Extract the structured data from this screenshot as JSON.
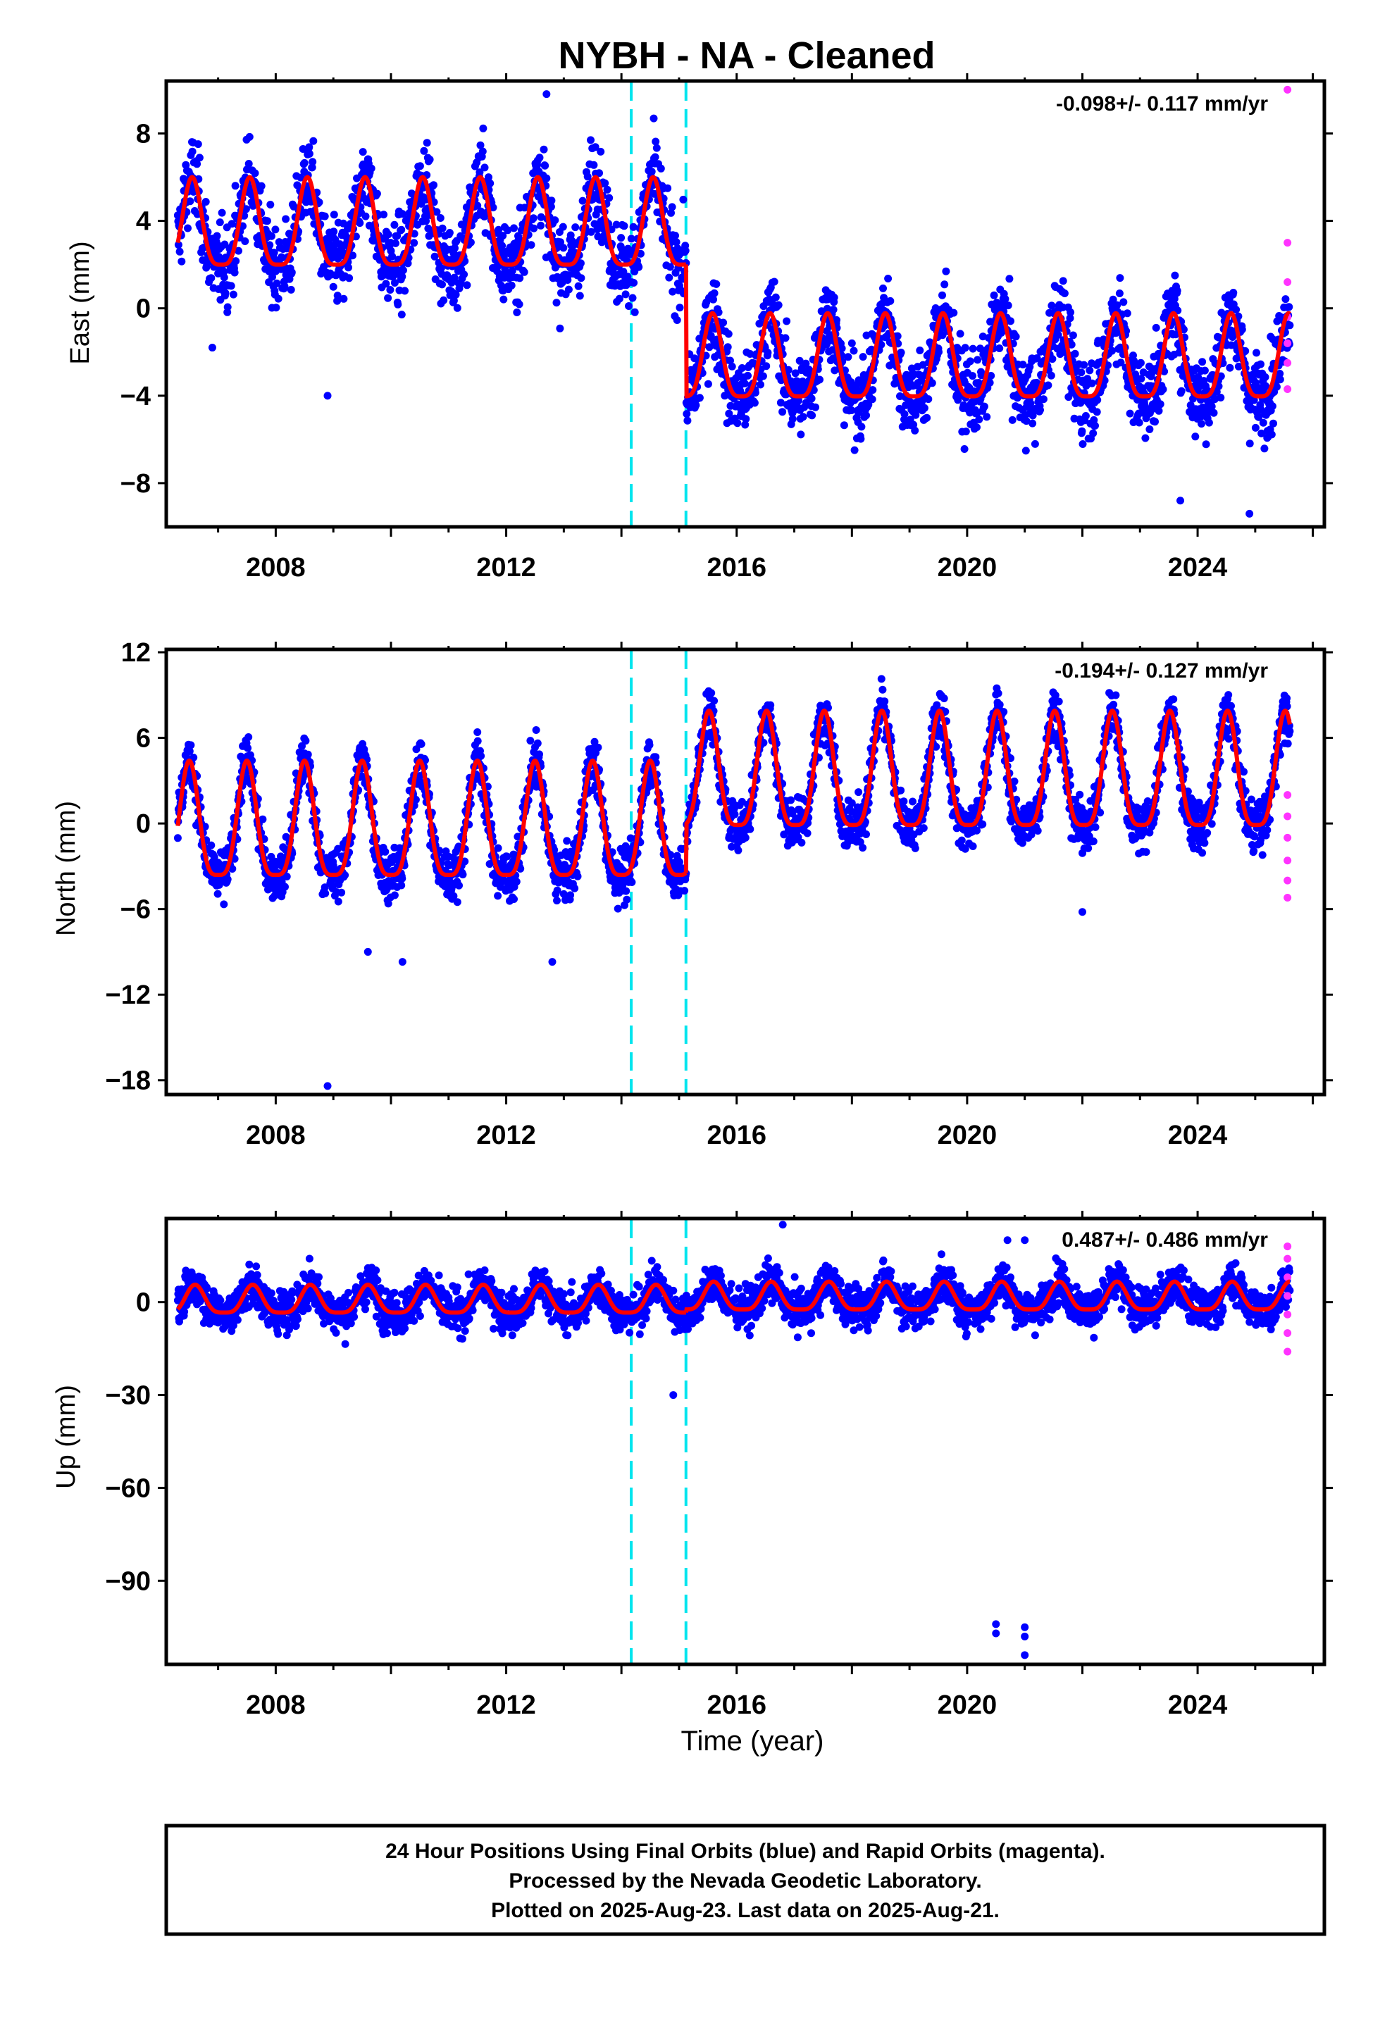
{
  "title": "NYBH  - NA - Cleaned",
  "xlabel": "Time (year)",
  "colors": {
    "final": "#0000ff",
    "rapid": "#ff33ff",
    "model": "#ff0000",
    "offset": "#00e5ee",
    "frame": "#000000"
  },
  "offset_lines": [
    2014.17,
    2015.12
  ],
  "x_range": [
    2006.1,
    2026.2
  ],
  "x_major_ticks": [
    2008,
    2012,
    2016,
    2020,
    2024
  ],
  "caption": [
    "24 Hour Positions Using Final Orbits (blue) and Rapid Orbits (magenta).",
    "Processed by the Nevada Geodetic Laboratory.",
    "Plotted on 2025-Aug-23. Last data on 2025-Aug-21."
  ],
  "chart_data": [
    {
      "type": "scatter",
      "name": "east",
      "ylabel": "East (mm)",
      "rate": "-0.098+/- 0.117 mm/yr",
      "ylim": [
        -10,
        10.4
      ],
      "yticks": [
        8,
        4,
        0,
        -4,
        -8
      ],
      "ytick_labels": [
        "8",
        "4",
        "0",
        "−4",
        "−8"
      ],
      "data_start": 2006.3,
      "data_end": 2025.6,
      "segments": [
        {
          "start": 2006.3,
          "end": 2015.12,
          "baseline": 3.5,
          "amplitude": 2.0,
          "phase": 2006.55
        },
        {
          "start": 2015.12,
          "end": 2025.6,
          "baseline": -2.6,
          "amplitude": 1.9,
          "phase": 2015.58
        }
      ],
      "scatter_noise": 1.6,
      "outliers": [
        [
          2006.9,
          -1.8
        ],
        [
          2008.9,
          -4.0
        ],
        [
          2024.9,
          -9.4
        ],
        [
          2023.7,
          -8.8
        ],
        [
          2012.7,
          9.8
        ]
      ],
      "rapid_points": [
        [
          2025.56,
          10.0
        ],
        [
          2025.56,
          3.0
        ],
        [
          2025.56,
          1.2
        ],
        [
          2025.56,
          -0.4
        ],
        [
          2025.56,
          -1.6
        ],
        [
          2025.56,
          -2.5
        ],
        [
          2025.56,
          -3.7
        ]
      ]
    },
    {
      "type": "scatter",
      "name": "north",
      "ylabel": "North (mm)",
      "rate": "-0.194+/- 0.127 mm/yr",
      "ylim": [
        -19,
        12.2
      ],
      "yticks": [
        12,
        6,
        0,
        -6,
        -12,
        -18
      ],
      "ytick_labels": [
        "12",
        "6",
        "0",
        "−6",
        "−12",
        "−18"
      ],
      "data_start": 2006.3,
      "data_end": 2025.6,
      "segments": [
        {
          "start": 2006.3,
          "end": 2015.12,
          "baseline": -0.6,
          "amplitude": 4.0,
          "phase": 2006.5
        },
        {
          "start": 2015.12,
          "end": 2025.6,
          "baseline": 2.9,
          "amplitude": 4.0,
          "phase": 2015.52
        }
      ],
      "scatter_noise": 1.5,
      "outliers": [
        [
          2008.9,
          -18.4
        ],
        [
          2010.2,
          -9.7
        ],
        [
          2012.8,
          -9.7
        ],
        [
          2009.6,
          -9.0
        ],
        [
          2022.0,
          -6.2
        ]
      ],
      "rapid_points": [
        [
          2025.56,
          2.0
        ],
        [
          2025.56,
          0.5
        ],
        [
          2025.56,
          -1.0
        ],
        [
          2025.56,
          -2.6
        ],
        [
          2025.56,
          -4.0
        ],
        [
          2025.56,
          -5.2
        ]
      ]
    },
    {
      "type": "scatter",
      "name": "up",
      "ylabel": "Up (mm)",
      "rate": "0.487+/- 0.486 mm/yr",
      "ylim": [
        -117,
        27
      ],
      "yticks": [
        0,
        -30,
        -60,
        -90
      ],
      "ytick_labels": [
        "0",
        "−30",
        "−60",
        "−90"
      ],
      "data_start": 2006.3,
      "data_end": 2025.6,
      "segments": [
        {
          "start": 2006.3,
          "end": 2015.12,
          "baseline": 0.0,
          "amplitude": 4.5,
          "phase": 2006.6
        },
        {
          "start": 2015.12,
          "end": 2025.6,
          "baseline": 1.0,
          "amplitude": 4.5,
          "phase": 2015.6
        }
      ],
      "scatter_noise": 5.5,
      "outliers": [
        [
          2020.5,
          -104
        ],
        [
          2020.5,
          -107
        ],
        [
          2021.0,
          -105
        ],
        [
          2021.0,
          -108
        ],
        [
          2021.0,
          -114
        ],
        [
          2014.9,
          -30
        ],
        [
          2020.7,
          20
        ],
        [
          2021.0,
          20
        ],
        [
          2016.8,
          25
        ]
      ],
      "rapid_points": [
        [
          2025.56,
          18
        ],
        [
          2025.56,
          14
        ],
        [
          2025.56,
          8
        ],
        [
          2025.56,
          2
        ],
        [
          2025.56,
          -4
        ],
        [
          2025.56,
          -10
        ],
        [
          2025.56,
          -16
        ]
      ]
    }
  ]
}
